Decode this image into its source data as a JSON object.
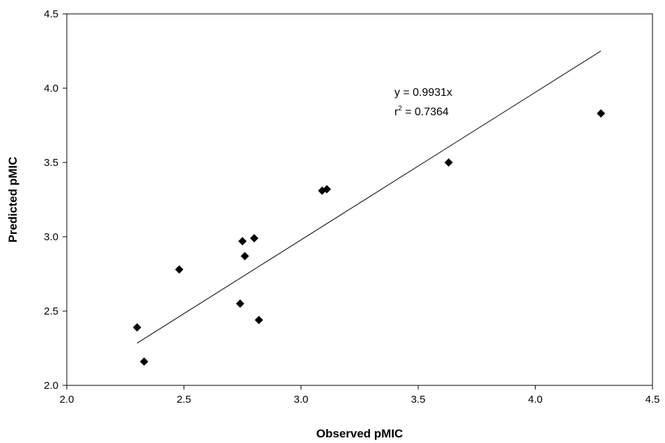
{
  "chart_data": {
    "type": "scatter",
    "xlabel": "Observed pMIC",
    "ylabel": "Predicted pMIC",
    "xlim": [
      2.0,
      4.5
    ],
    "ylim": [
      2.0,
      4.5
    ],
    "xticks": [
      2.0,
      2.5,
      3.0,
      3.5,
      4.0,
      4.5
    ],
    "yticks": [
      2.0,
      2.5,
      3.0,
      3.5,
      4.0,
      4.5
    ],
    "xtick_labels": [
      "2.0",
      "2.5",
      "3.0",
      "3.5",
      "4.0",
      "4.5"
    ],
    "ytick_labels": [
      "2.0",
      "2.5",
      "3.0",
      "3.5",
      "4.0",
      "4.5"
    ],
    "grid": false,
    "marker": "diamond",
    "marker_color": "#000000",
    "series": [
      {
        "points": [
          {
            "x": 2.3,
            "y": 2.39
          },
          {
            "x": 2.33,
            "y": 2.16
          },
          {
            "x": 2.48,
            "y": 2.78
          },
          {
            "x": 2.74,
            "y": 2.55
          },
          {
            "x": 2.75,
            "y": 2.97
          },
          {
            "x": 2.76,
            "y": 2.87
          },
          {
            "x": 2.8,
            "y": 2.99
          },
          {
            "x": 2.82,
            "y": 2.44
          },
          {
            "x": 3.09,
            "y": 3.31
          },
          {
            "x": 3.11,
            "y": 3.32
          },
          {
            "x": 3.63,
            "y": 3.5
          },
          {
            "x": 4.28,
            "y": 3.83
          }
        ]
      }
    ],
    "trendline": {
      "slope": 0.9931,
      "intercept": 0,
      "x_range": [
        2.3,
        4.28
      ],
      "color": "#000000"
    },
    "annotation": {
      "equation": "y = 0.9931x",
      "r2_prefix": "r",
      "r2_sup": "2",
      "r2_value": " = 0.7364"
    }
  }
}
